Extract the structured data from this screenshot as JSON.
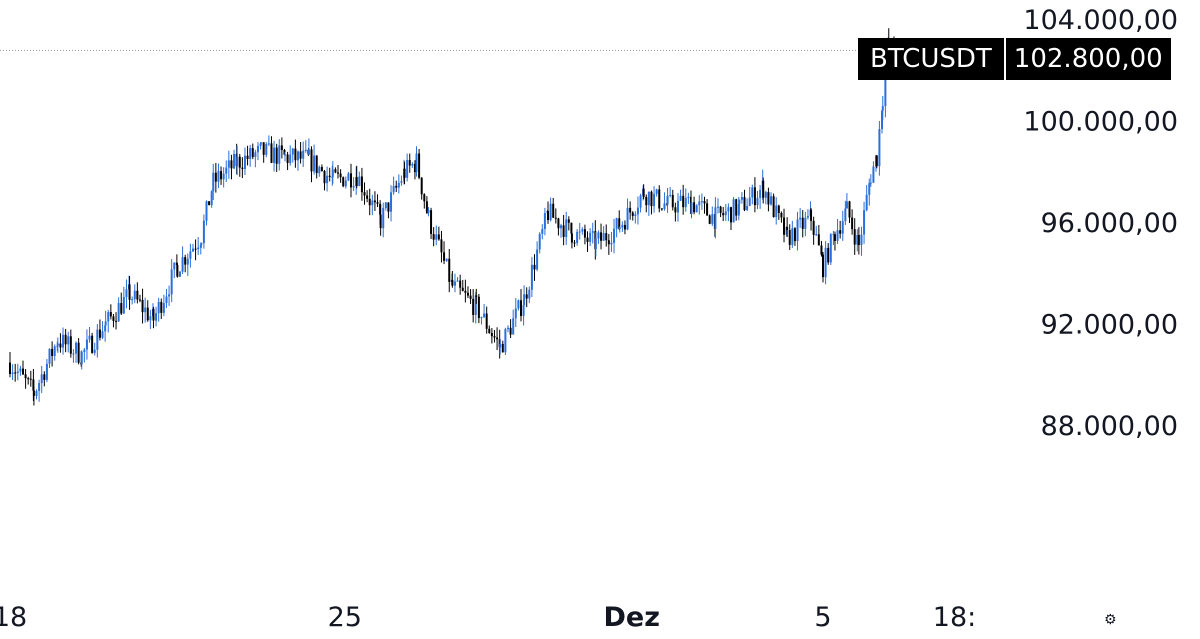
{
  "chart_data": {
    "type": "candlestick",
    "symbol": "BTCUSDT",
    "last_price": 102800,
    "last_price_label": "102.800,00",
    "ylim": [
      85000,
      105000
    ],
    "y_ticks": [
      {
        "value": 104000,
        "label": "104.000,00"
      },
      {
        "value": 100000,
        "label": "100.000,00"
      },
      {
        "value": 96000,
        "label": "96.000,00"
      },
      {
        "value": 92000,
        "label": "92.000,00"
      },
      {
        "value": 88000,
        "label": "88.000,00"
      }
    ],
    "x_ticks": [
      {
        "value": "Nov 18",
        "label": "18",
        "bold": false
      },
      {
        "value": "Nov 25",
        "label": "25",
        "bold": false
      },
      {
        "value": "Dec 1",
        "label": "Dez",
        "bold": true
      },
      {
        "value": "Dec 5",
        "label": "5",
        "bold": false
      },
      {
        "value": "Dec 7 18:00",
        "label": "18:",
        "bold": false
      }
    ],
    "timeframe": "1h",
    "close_path": [
      [
        "Nov 18 00:00",
        90500
      ],
      [
        "Nov 18 12:00",
        89300
      ],
      [
        "Nov 19 00:00",
        91400
      ],
      [
        "Nov 19 12:00",
        90800
      ],
      [
        "Nov 20 00:00",
        92000
      ],
      [
        "Nov 20 12:00",
        93200
      ],
      [
        "Nov 21 00:00",
        92200
      ],
      [
        "Nov 21 12:00",
        94300
      ],
      [
        "Nov 22 00:00",
        95500
      ],
      [
        "Nov 22 06:00",
        97600
      ],
      [
        "Nov 22 18:00",
        98400
      ],
      [
        "Nov 23 06:00",
        98800
      ],
      [
        "Nov 23 18:00",
        98600
      ],
      [
        "Nov 24 06:00",
        98500
      ],
      [
        "Nov 24 18:00",
        97700
      ],
      [
        "Nov 25 06:00",
        97900
      ],
      [
        "Nov 25 18:00",
        96100
      ],
      [
        "Nov 26 06:00",
        98000
      ],
      [
        "Nov 26 12:00",
        98400
      ],
      [
        "Nov 26 18:00",
        96200
      ],
      [
        "Nov 27 06:00",
        93500
      ],
      [
        "Nov 27 18:00",
        92700
      ],
      [
        "Nov 28 06:00",
        91100
      ],
      [
        "Nov 28 18:00",
        93000
      ],
      [
        "Nov 29 06:00",
        96400
      ],
      [
        "Nov 29 18:00",
        95600
      ],
      [
        "Nov 30 06:00",
        95200
      ],
      [
        "Nov 30 18:00",
        95900
      ],
      [
        "Dec 1 06:00",
        97200
      ],
      [
        "Dec 1 18:00",
        96700
      ],
      [
        "Dec 2 06:00",
        96800
      ],
      [
        "Dec 2 18:00",
        96200
      ],
      [
        "Dec 3 06:00",
        96600
      ],
      [
        "Dec 3 18:00",
        97400
      ],
      [
        "Dec 4 06:00",
        95400
      ],
      [
        "Dec 4 18:00",
        96200
      ],
      [
        "Dec 5 00:00",
        94300
      ],
      [
        "Dec 5 06:00",
        95600
      ],
      [
        "Dec 5 12:00",
        96500
      ],
      [
        "Dec 5 18:00",
        95100
      ],
      [
        "Dec 6 00:00",
        97900
      ],
      [
        "Dec 6 03:00",
        98600
      ],
      [
        "Dec 6 06:00",
        101000
      ],
      [
        "Dec 6 09:00",
        103200
      ],
      [
        "Dec 6 12:00",
        102300
      ],
      [
        "Dec 6 15:00",
        102800
      ]
    ]
  }
}
